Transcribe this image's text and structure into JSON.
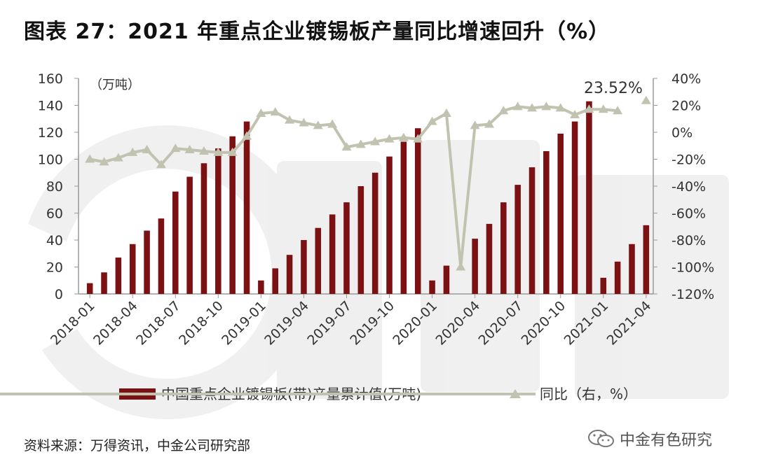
{
  "title": "图表 27：2021 年重点企业镀锡板产量同比增速回升（%）",
  "source": "资料来源：万得资讯，中金公司研究部",
  "wechat_label": "中金有色研究",
  "watermark_icon": "cicc-logo-watermark",
  "colors": {
    "bar": "#7b1113",
    "line": "#c2c2b0",
    "axis": "#999999"
  },
  "chart_data": {
    "type": "bar+line",
    "title": "图表 27：2021 年重点企业镀锡板产量同比增速回升（%）",
    "y_left": {
      "unit_label": "（万吨）",
      "range": [
        0,
        160
      ],
      "ticks": [
        "0",
        "20",
        "40",
        "60",
        "80",
        "100",
        "120",
        "140",
        "160"
      ]
    },
    "y_right": {
      "range": [
        -120,
        40
      ],
      "ticks": [
        "40%",
        "20%",
        "0%",
        "-20%",
        "-40%",
        "-60%",
        "-80%",
        "-100%",
        "-120%"
      ]
    },
    "x_tick_labels": [
      "2018-01",
      "2018-04",
      "2018-07",
      "2018-10",
      "2019-01",
      "2019-04",
      "2019-07",
      "2019-10",
      "2020-01",
      "2020-04",
      "2020-07",
      "2020-10",
      "2021-01",
      "2021-04"
    ],
    "months": [
      "2018-01",
      "2018-02",
      "2018-03",
      "2018-04",
      "2018-05",
      "2018-06",
      "2018-07",
      "2018-08",
      "2018-09",
      "2018-10",
      "2018-11",
      "2018-12",
      "2019-01",
      "2019-02",
      "2019-03",
      "2019-04",
      "2019-05",
      "2019-06",
      "2019-07",
      "2019-08",
      "2019-09",
      "2019-10",
      "2019-11",
      "2019-12",
      "2020-01",
      "2020-02",
      "2020-03",
      "2020-04",
      "2020-05",
      "2020-06",
      "2020-07",
      "2020-08",
      "2020-09",
      "2020-10",
      "2020-11",
      "2020-12",
      "2021-01",
      "2021-02",
      "2021-03",
      "2021-04"
    ],
    "series": [
      {
        "name": "中国重点企业镀锡板(带)产量累计值(万吨)",
        "type": "bar",
        "axis": "left",
        "values": [
          8,
          16,
          27,
          37,
          47,
          56,
          76,
          87,
          97,
          108,
          117,
          128,
          10,
          19,
          29,
          40,
          49,
          59,
          68,
          80,
          90,
          102,
          113,
          123,
          10,
          21,
          null,
          41,
          52,
          68,
          81,
          94,
          106,
          119,
          128,
          143,
          12,
          24,
          37,
          51
        ]
      },
      {
        "name": "同比（右，%）",
        "type": "line",
        "axis": "right",
        "values": [
          -20,
          -22,
          -19,
          -15,
          -13,
          -24,
          -12,
          -13,
          -14,
          -15,
          -15,
          -3,
          14,
          15,
          9,
          7,
          5,
          6,
          -11,
          -9,
          -7,
          -5,
          -4,
          -5,
          8,
          14,
          -100,
          5,
          6,
          16,
          19,
          18,
          19,
          18,
          13,
          17,
          17,
          16,
          null,
          23.52
        ]
      }
    ],
    "annotations": [
      "23.52%"
    ],
    "legend_position": "bottom"
  }
}
